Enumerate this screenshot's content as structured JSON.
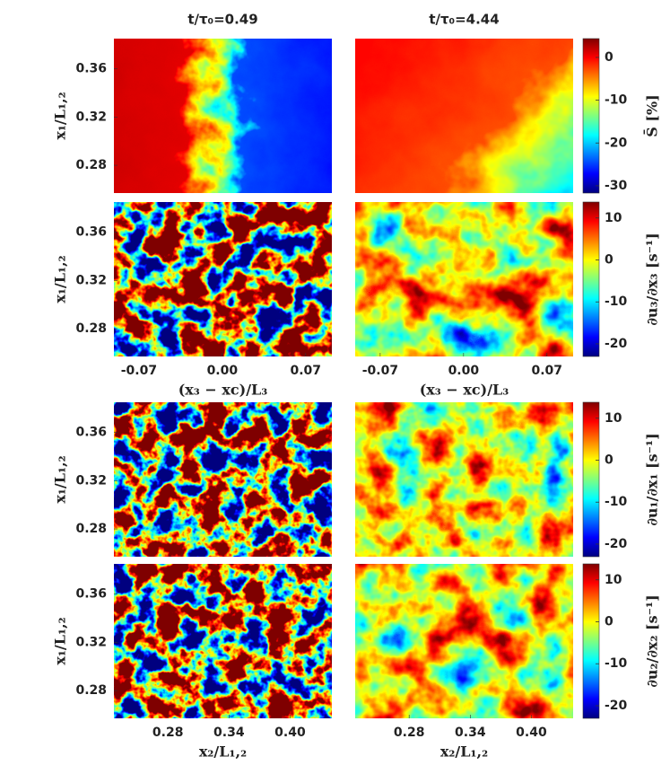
{
  "chart_data": [
    {
      "type": "heatmap",
      "title": "t/τ₀=0.49",
      "ylabel": "x₁/L₁,₂",
      "ylim": [
        0.257,
        0.385
      ],
      "yticks": [
        0.36,
        0.32,
        0.28
      ]
    },
    {
      "type": "heatmap",
      "title": "t/τ₀=4.44",
      "colorbar": {
        "label": "S̄ [%]",
        "colormap": "jet",
        "clim": [
          -31.7,
          4.4
        ],
        "ticks": [
          0,
          -10,
          -20,
          -30
        ]
      }
    },
    {
      "type": "heatmap",
      "ylabel": "x₁/L₁,₂",
      "ylim": [
        0.257,
        0.385
      ],
      "yticks": [
        0.36,
        0.32,
        0.28
      ],
      "xlabel": "(x₃ − xc)/L₃",
      "xlim": [
        -0.091,
        0.092
      ],
      "xticks": [
        -0.07,
        {
          "value": 0,
          "label": "0.00"
        },
        0.07
      ]
    },
    {
      "type": "heatmap",
      "xlabel": "(x₃ − xc)/L₃",
      "xlim": [
        -0.091,
        0.092
      ],
      "xticks": [
        -0.07,
        {
          "value": 0,
          "label": "0.00"
        },
        0.07
      ],
      "colorbar": {
        "label": "∂u₃/∂x₃ [s⁻¹]",
        "colormap": "jet",
        "clim": [
          -23,
          13.8
        ],
        "ticks": [
          10,
          0,
          -10,
          -20
        ]
      }
    },
    {
      "type": "heatmap",
      "ylabel": "x₁/L₁,₂",
      "ylim": [
        0.257,
        0.385
      ],
      "yticks": [
        0.36,
        0.32,
        0.28
      ]
    },
    {
      "type": "heatmap",
      "colorbar": {
        "label": "∂u₁/∂x₁ [s⁻¹]",
        "colormap": "jet",
        "clim": [
          -23,
          13.8
        ],
        "ticks": [
          10,
          0,
          -10,
          -20
        ]
      }
    },
    {
      "type": "heatmap",
      "ylabel": "x₁/L₁,₂",
      "ylim": [
        0.257,
        0.385
      ],
      "yticks": [
        0.36,
        0.32,
        0.28
      ],
      "xlabel": "x₂/L₁,₂",
      "xlim": [
        0.227,
        0.441
      ],
      "xticks": [
        0.28,
        0.34,
        {
          "value": 0.4,
          "label": "0.40"
        }
      ]
    },
    {
      "type": "heatmap",
      "xlabel": "x₂/L₁,₂",
      "xlim": [
        0.227,
        0.441
      ],
      "xticks": [
        0.28,
        0.34,
        {
          "value": 0.4,
          "label": "0.40"
        }
      ],
      "colorbar": {
        "label": "∂u₂/∂x₂ [s⁻¹]",
        "colormap": "jet",
        "clim": [
          -23,
          13.8
        ],
        "ticks": [
          10,
          0,
          -10,
          -20
        ]
      }
    }
  ]
}
